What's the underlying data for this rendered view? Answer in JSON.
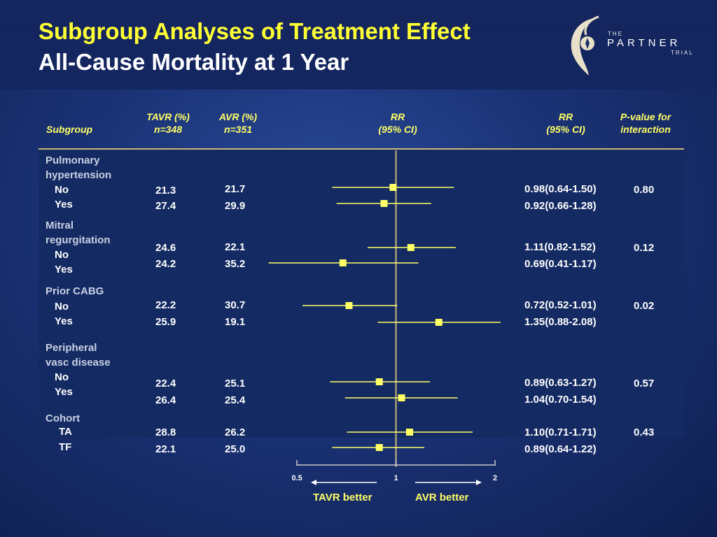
{
  "title": "Subgroup Analyses of Treatment Effect",
  "subtitle": "All-Cause Mortality at 1 Year",
  "logo": {
    "the": "THE",
    "partner": "PARTNER",
    "trial": "TRIAL"
  },
  "headers": {
    "subgroup": "Subgroup",
    "tavr": [
      "TAVR (%)",
      "n=348"
    ],
    "avr": [
      "AVR (%)",
      "n=351"
    ],
    "rr_plot": [
      "RR",
      "(95% CI)"
    ],
    "rr_text": [
      "RR",
      "(95% CI)"
    ],
    "pval": [
      "P-value for",
      "interaction"
    ]
  },
  "groups": [
    {
      "label_lines": [
        "Pulmonary",
        "hypertension"
      ],
      "pvalue": "0.80",
      "rows": [
        {
          "level": "No",
          "tavr": "21.3",
          "avr": "21.7",
          "rr_text": "0.98(0.64-1.50)"
        },
        {
          "level": "Yes",
          "tavr": "27.4",
          "avr": "29.9",
          "rr_text": "0.92(0.66-1.28)"
        }
      ]
    },
    {
      "label_lines": [
        "Mitral",
        "regurgitation"
      ],
      "pvalue": "0.12",
      "rows": [
        {
          "level": "No",
          "tavr": "24.6",
          "avr": "22.1",
          "rr_text": "1.11(0.82-1.52)"
        },
        {
          "level": "Yes",
          "tavr": "24.2",
          "avr": "35.2",
          "rr_text": "0.69(0.41-1.17)"
        }
      ]
    },
    {
      "label_lines": [
        "Prior CABG"
      ],
      "pvalue": "0.02",
      "rows": [
        {
          "level": "No",
          "tavr": "22.2",
          "avr": "30.7",
          "rr_text": "0.72(0.52-1.01)"
        },
        {
          "level": "Yes",
          "tavr": "25.9",
          "avr": "19.1",
          "rr_text": "1.35(0.88-2.08)"
        }
      ]
    },
    {
      "label_lines": [
        "Peripheral",
        "vasc disease"
      ],
      "pvalue": "0.57",
      "rows": [
        {
          "level": "No",
          "tavr": "22.4",
          "avr": "25.1",
          "rr_text": "0.89(0.63-1.27)"
        },
        {
          "level": "Yes",
          "tavr": "26.4",
          "avr": "25.4",
          "rr_text": "1.04(0.70-1.54)"
        }
      ]
    },
    {
      "label_lines": [
        "Cohort"
      ],
      "pvalue": "0.43",
      "rows": [
        {
          "level": "TA",
          "tavr": "28.8",
          "avr": "26.2",
          "rr_text": "1.10(0.71-1.71)"
        },
        {
          "level": "TF",
          "tavr": "22.1",
          "avr": "25.0",
          "rr_text": "0.89(0.64-1.22)"
        }
      ]
    }
  ],
  "axis": {
    "ticks": [
      "0.5",
      "1",
      "2"
    ],
    "left_label": "TAVR better",
    "right_label": "AVR better"
  },
  "colors": {
    "title": "#ffff33",
    "marker": "#ffff66",
    "ref_line": "#c9b877",
    "background": "#1a3275"
  },
  "chart_data": {
    "type": "forest",
    "scale": "log",
    "xlim": [
      0.5,
      2
    ],
    "xticks": [
      0.5,
      1,
      2
    ],
    "reference": 1,
    "points": [
      {
        "group": "Pulmonary hypertension",
        "level": "No",
        "rr": 0.98,
        "lo": 0.64,
        "hi": 1.5
      },
      {
        "group": "Pulmonary hypertension",
        "level": "Yes",
        "rr": 0.92,
        "lo": 0.66,
        "hi": 1.28
      },
      {
        "group": "Mitral regurgitation",
        "level": "No",
        "rr": 1.11,
        "lo": 0.82,
        "hi": 1.52
      },
      {
        "group": "Mitral regurgitation",
        "level": "Yes",
        "rr": 0.69,
        "lo": 0.41,
        "hi": 1.17
      },
      {
        "group": "Prior CABG",
        "level": "No",
        "rr": 0.72,
        "lo": 0.52,
        "hi": 1.01
      },
      {
        "group": "Prior CABG",
        "level": "Yes",
        "rr": 1.35,
        "lo": 0.88,
        "hi": 2.08
      },
      {
        "group": "Peripheral vasc disease",
        "level": "No",
        "rr": 0.89,
        "lo": 0.63,
        "hi": 1.27
      },
      {
        "group": "Peripheral vasc disease",
        "level": "Yes",
        "rr": 1.04,
        "lo": 0.7,
        "hi": 1.54
      },
      {
        "group": "Cohort",
        "level": "TA",
        "rr": 1.1,
        "lo": 0.71,
        "hi": 1.71
      },
      {
        "group": "Cohort",
        "level": "TF",
        "rr": 0.89,
        "lo": 0.64,
        "hi": 1.22
      }
    ]
  }
}
